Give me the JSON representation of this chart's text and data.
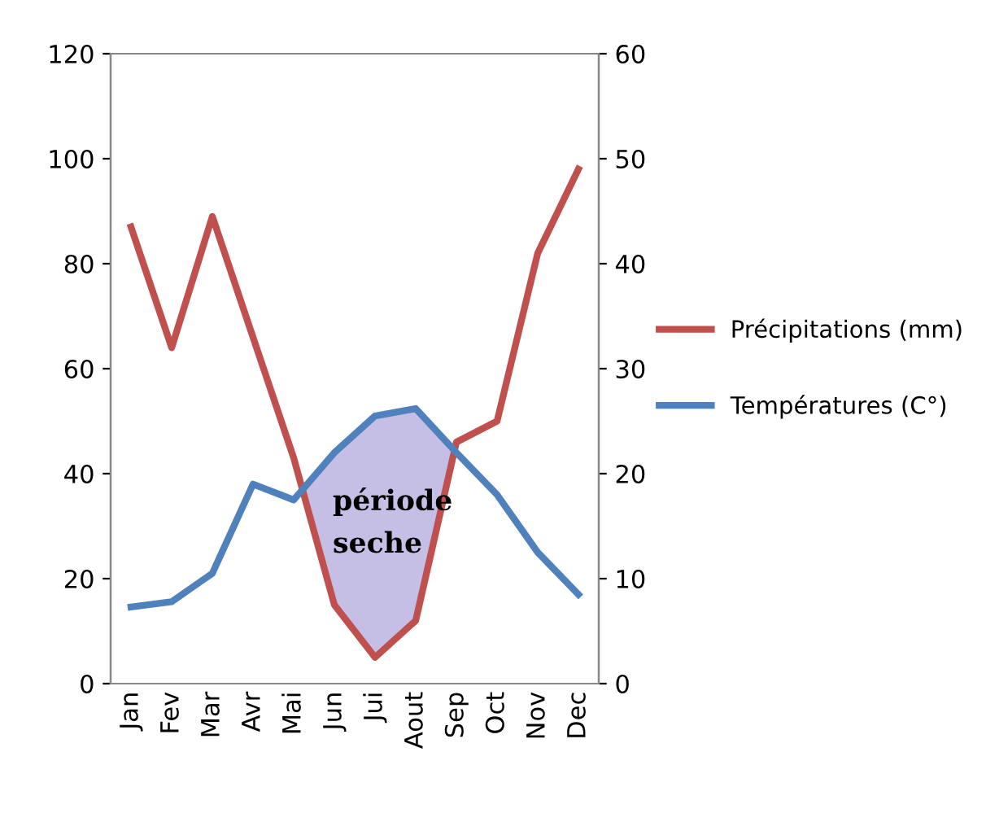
{
  "chart_data": {
    "type": "line",
    "categories": [
      "Jan",
      "Fev",
      "Mar",
      "Avr",
      "Mai",
      "Jun",
      "Jui",
      "Aout",
      "Sep",
      "Oct",
      "Nov",
      "Dec"
    ],
    "series": [
      {
        "name": "Précipitations (mm)",
        "color": "#c0504d",
        "values": [
          87,
          64,
          89,
          66,
          43,
          15,
          5,
          12,
          46,
          50,
          82,
          98
        ]
      },
      {
        "name": "Températures (C°)",
        "color": "#4f81bd",
        "axis": "y2",
        "values": [
          7.3,
          7.8,
          10.5,
          19,
          17.5,
          22,
          25.5,
          26.2,
          22,
          18,
          12.5,
          8.5
        ]
      }
    ],
    "ylim": [
      0,
      120
    ],
    "yticks": [
      0,
      20,
      40,
      60,
      80,
      100,
      120
    ],
    "y2lim": [
      0,
      60
    ],
    "y2ticks": [
      0,
      10,
      20,
      30,
      40,
      50,
      60
    ],
    "annotations": [
      "période\nseche"
    ],
    "legend": "right",
    "grid": false,
    "marker": "none",
    "line_style": "solid"
  }
}
